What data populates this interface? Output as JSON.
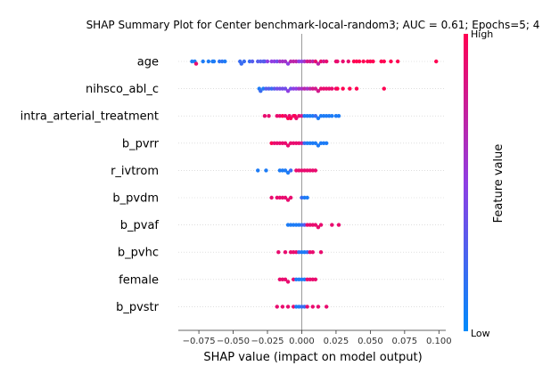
{
  "chart_data": {
    "type": "scatter",
    "title": "SHAP Summary Plot for Center benchmark-local-random3; AUC = 0.61; Epochs=5; 4",
    "xlabel": "SHAP value (impact on model output)",
    "xlim": [
      -0.09,
      0.105
    ],
    "xticks": [
      "−0.075",
      "−0.050",
      "−0.025",
      "0.000",
      "0.025",
      "0.050",
      "0.075",
      "0.100"
    ],
    "xtick_values": [
      -0.075,
      -0.05,
      -0.025,
      0.0,
      0.025,
      0.05,
      0.075,
      0.1
    ],
    "colorbar": {
      "label": "Feature value",
      "high": "High",
      "low": "Low",
      "low_color": "#008bfb",
      "high_color": "#ff0052"
    },
    "features": [
      {
        "name": "age",
        "points": [
          [
            -0.08,
            0.1
          ],
          [
            -0.078,
            0.1
          ],
          [
            -0.077,
            0.9
          ],
          [
            -0.072,
            0.1
          ],
          [
            -0.068,
            0.1
          ],
          [
            -0.065,
            0.1
          ],
          [
            -0.064,
            0.1
          ],
          [
            -0.06,
            0.15
          ],
          [
            -0.058,
            0.15
          ],
          [
            -0.056,
            0.1
          ],
          [
            -0.045,
            0.2
          ],
          [
            -0.044,
            0.2
          ],
          [
            -0.042,
            0.2
          ],
          [
            -0.038,
            0.2
          ],
          [
            -0.036,
            0.3
          ],
          [
            -0.032,
            0.3
          ],
          [
            -0.03,
            0.3
          ],
          [
            -0.028,
            0.3
          ],
          [
            -0.027,
            0.3
          ],
          [
            -0.025,
            0.5
          ],
          [
            -0.022,
            0.5
          ],
          [
            -0.02,
            0.5
          ],
          [
            -0.018,
            0.4
          ],
          [
            -0.016,
            0.6
          ],
          [
            -0.014,
            0.6
          ],
          [
            -0.012,
            0.6
          ],
          [
            -0.01,
            0.5
          ],
          [
            -0.008,
            0.7
          ],
          [
            -0.006,
            0.7
          ],
          [
            -0.004,
            0.7
          ],
          [
            -0.002,
            0.5
          ],
          [
            0.0,
            0.5
          ],
          [
            0.002,
            0.6
          ],
          [
            0.004,
            0.8
          ],
          [
            0.006,
            0.8
          ],
          [
            0.008,
            0.7
          ],
          [
            0.01,
            0.9
          ],
          [
            0.012,
            0.7
          ],
          [
            0.014,
            0.9
          ],
          [
            0.016,
            0.8
          ],
          [
            0.018,
            0.9
          ],
          [
            0.025,
            0.9
          ],
          [
            0.026,
            0.9
          ],
          [
            0.03,
            0.9
          ],
          [
            0.034,
            0.9
          ],
          [
            0.038,
            1.0
          ],
          [
            0.04,
            1.0
          ],
          [
            0.042,
            1.0
          ],
          [
            0.045,
            1.0
          ],
          [
            0.048,
            1.0
          ],
          [
            0.05,
            1.0
          ],
          [
            0.052,
            1.0
          ],
          [
            0.058,
            1.0
          ],
          [
            0.06,
            1.0
          ],
          [
            0.065,
            1.0
          ],
          [
            0.07,
            1.0
          ],
          [
            0.098,
            1.0
          ]
        ]
      },
      {
        "name": "nihsco_abl_c",
        "points": [
          [
            -0.031,
            0.1
          ],
          [
            -0.03,
            0.2
          ],
          [
            -0.028,
            0.1
          ],
          [
            -0.026,
            0.3
          ],
          [
            -0.024,
            0.3
          ],
          [
            -0.022,
            0.2
          ],
          [
            -0.02,
            0.3
          ],
          [
            -0.018,
            0.4
          ],
          [
            -0.016,
            0.4
          ],
          [
            -0.014,
            0.4
          ],
          [
            -0.012,
            0.4
          ],
          [
            -0.01,
            0.5
          ],
          [
            -0.008,
            0.4
          ],
          [
            -0.006,
            0.5
          ],
          [
            -0.004,
            0.5
          ],
          [
            -0.002,
            0.6
          ],
          [
            0.0,
            0.6
          ],
          [
            0.002,
            0.7
          ],
          [
            0.004,
            0.6
          ],
          [
            0.006,
            0.7
          ],
          [
            0.008,
            0.8
          ],
          [
            0.01,
            0.8
          ],
          [
            0.012,
            0.8
          ],
          [
            0.014,
            0.9
          ],
          [
            0.016,
            0.9
          ],
          [
            0.018,
            0.9
          ],
          [
            0.02,
            0.9
          ],
          [
            0.022,
            0.9
          ],
          [
            0.025,
            0.9
          ],
          [
            0.026,
            1.0
          ],
          [
            0.03,
            1.0
          ],
          [
            0.035,
            1.0
          ],
          [
            0.04,
            1.0
          ],
          [
            0.06,
            1.0
          ]
        ]
      },
      {
        "name": "intra_arterial_treatment",
        "points": [
          [
            -0.027,
            0.9
          ],
          [
            -0.024,
            0.9
          ],
          [
            -0.018,
            0.9
          ],
          [
            -0.016,
            0.9
          ],
          [
            -0.014,
            1.0
          ],
          [
            -0.012,
            0.9
          ],
          [
            -0.01,
            1.0
          ],
          [
            -0.009,
            0.9
          ],
          [
            -0.008,
            1.0
          ],
          [
            -0.006,
            0.9
          ],
          [
            -0.005,
            1.0
          ],
          [
            -0.004,
            0.9
          ],
          [
            -0.002,
            0.9
          ],
          [
            0.0,
            0.8
          ],
          [
            0.002,
            0.1
          ],
          [
            0.004,
            0.1
          ],
          [
            0.006,
            0.1
          ],
          [
            0.008,
            0.1
          ],
          [
            0.01,
            0.2
          ],
          [
            0.012,
            0.1
          ],
          [
            0.014,
            0.1
          ],
          [
            0.016,
            0.1
          ],
          [
            0.018,
            0.1
          ],
          [
            0.02,
            0.1
          ],
          [
            0.022,
            0.1
          ],
          [
            0.025,
            0.1
          ],
          [
            0.027,
            0.1
          ]
        ]
      },
      {
        "name": "b_pvrr",
        "points": [
          [
            -0.022,
            1.0
          ],
          [
            -0.02,
            0.9
          ],
          [
            -0.018,
            0.9
          ],
          [
            -0.016,
            0.9
          ],
          [
            -0.014,
            0.9
          ],
          [
            -0.012,
            0.9
          ],
          [
            -0.01,
            0.9
          ],
          [
            -0.008,
            0.9
          ],
          [
            -0.006,
            0.9
          ],
          [
            -0.004,
            0.9
          ],
          [
            -0.002,
            0.9
          ],
          [
            0.0,
            0.8
          ],
          [
            0.002,
            0.2
          ],
          [
            0.004,
            0.1
          ],
          [
            0.006,
            0.1
          ],
          [
            0.008,
            0.1
          ],
          [
            0.01,
            0.1
          ],
          [
            0.012,
            0.1
          ],
          [
            0.014,
            0.1
          ],
          [
            0.016,
            0.1
          ],
          [
            0.018,
            0.1
          ]
        ]
      },
      {
        "name": "r_ivtrom",
        "points": [
          [
            -0.032,
            0.1
          ],
          [
            -0.026,
            0.1
          ],
          [
            -0.016,
            0.1
          ],
          [
            -0.014,
            0.1
          ],
          [
            -0.012,
            0.1
          ],
          [
            -0.01,
            0.1
          ],
          [
            -0.008,
            0.2
          ],
          [
            -0.004,
            0.9
          ],
          [
            -0.002,
            0.9
          ],
          [
            0.0,
            0.9
          ],
          [
            0.002,
            0.9
          ],
          [
            0.004,
            0.9
          ],
          [
            0.006,
            0.9
          ],
          [
            0.008,
            0.9
          ],
          [
            0.01,
            0.9
          ]
        ]
      },
      {
        "name": "b_pvdm",
        "points": [
          [
            -0.022,
            0.9
          ],
          [
            -0.018,
            0.9
          ],
          [
            -0.016,
            0.9
          ],
          [
            -0.014,
            0.9
          ],
          [
            -0.012,
            0.9
          ],
          [
            -0.01,
            0.9
          ],
          [
            -0.008,
            0.9
          ],
          [
            0.0,
            0.2
          ],
          [
            0.002,
            0.1
          ],
          [
            0.004,
            0.1
          ]
        ]
      },
      {
        "name": "b_pvaf",
        "points": [
          [
            -0.01,
            0.1
          ],
          [
            -0.008,
            0.1
          ],
          [
            -0.006,
            0.1
          ],
          [
            -0.004,
            0.1
          ],
          [
            -0.002,
            0.1
          ],
          [
            0.0,
            0.2
          ],
          [
            0.002,
            0.3
          ],
          [
            0.004,
            0.9
          ],
          [
            0.006,
            0.9
          ],
          [
            0.008,
            0.9
          ],
          [
            0.01,
            0.9
          ],
          [
            0.012,
            0.9
          ],
          [
            0.014,
            0.9
          ],
          [
            0.022,
            0.9
          ],
          [
            0.027,
            0.9
          ]
        ]
      },
      {
        "name": "b_pvhc",
        "points": [
          [
            -0.017,
            0.9
          ],
          [
            -0.012,
            0.9
          ],
          [
            -0.008,
            0.9
          ],
          [
            -0.006,
            0.9
          ],
          [
            -0.004,
            0.9
          ],
          [
            -0.002,
            0.2
          ],
          [
            0.0,
            0.1
          ],
          [
            0.002,
            0.1
          ],
          [
            0.004,
            0.2
          ],
          [
            0.006,
            0.9
          ],
          [
            0.008,
            0.9
          ],
          [
            0.014,
            0.9
          ]
        ]
      },
      {
        "name": "female",
        "points": [
          [
            -0.016,
            0.9
          ],
          [
            -0.014,
            0.9
          ],
          [
            -0.012,
            0.9
          ],
          [
            -0.01,
            0.9
          ],
          [
            -0.006,
            0.9
          ],
          [
            -0.004,
            0.1
          ],
          [
            -0.002,
            0.1
          ],
          [
            0.0,
            0.1
          ],
          [
            0.002,
            0.1
          ],
          [
            0.004,
            0.9
          ],
          [
            0.006,
            0.9
          ],
          [
            0.008,
            0.9
          ],
          [
            0.01,
            0.9
          ]
        ]
      },
      {
        "name": "b_pvstr",
        "points": [
          [
            -0.018,
            0.9
          ],
          [
            -0.014,
            0.9
          ],
          [
            -0.01,
            0.9
          ],
          [
            -0.006,
            0.9
          ],
          [
            -0.004,
            0.1
          ],
          [
            -0.002,
            0.1
          ],
          [
            0.0,
            0.2
          ],
          [
            0.002,
            0.2
          ],
          [
            0.004,
            0.9
          ],
          [
            0.008,
            0.9
          ],
          [
            0.012,
            0.9
          ],
          [
            0.018,
            0.9
          ]
        ]
      }
    ]
  }
}
